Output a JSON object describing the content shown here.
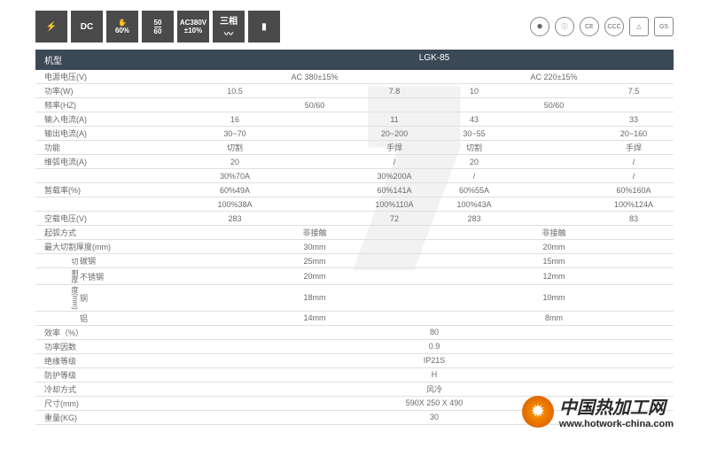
{
  "icons": {
    "i2": "DC",
    "i3": "60%",
    "i4a": "50",
    "i4b": "60",
    "i5a": "AC380V",
    "i5b": "±10%",
    "i6": "三相"
  },
  "certs": [
    "⬢",
    "ⓘ",
    "CE",
    "CCC",
    "△",
    "GS"
  ],
  "header": {
    "lbl": "机型",
    "val": "LGK-85"
  },
  "rows": [
    {
      "lbl": "电源电压(V)",
      "v": [
        "",
        "AC 380±15%",
        "",
        "",
        "AC 220±15%",
        ""
      ]
    },
    {
      "lbl": "功率(W)",
      "v": [
        "10.5",
        "",
        "7.8",
        "10",
        "",
        "7.5"
      ]
    },
    {
      "lbl": "频率(HZ)",
      "v": [
        "",
        "50/60",
        "",
        "",
        "50/60",
        ""
      ]
    },
    {
      "lbl": "输入电流(A)",
      "v": [
        "16",
        "",
        "11",
        "43",
        "",
        "33"
      ]
    },
    {
      "lbl": "输出电流(A)",
      "v": [
        "30~70",
        "",
        "20~200",
        "30~55",
        "",
        "20~160"
      ]
    },
    {
      "lbl": "功能",
      "v": [
        "切割",
        "",
        "手焊",
        "切割",
        "",
        "手焊"
      ]
    },
    {
      "lbl": "维弧电流(A)",
      "v": [
        "20",
        "",
        "/",
        "20",
        "",
        "/"
      ]
    },
    {
      "lbl": "",
      "v": [
        "30%70A",
        "",
        "30%200A",
        "/",
        "",
        "/"
      ]
    },
    {
      "lbl": "暂载率(%)",
      "v": [
        "60%49A",
        "",
        "60%141A",
        "60%55A",
        "",
        "60%160A"
      ]
    },
    {
      "lbl": "",
      "v": [
        "100%38A",
        "",
        "100%110A",
        "100%43A",
        "",
        "100%124A"
      ]
    },
    {
      "lbl": "空载电压(V)",
      "v": [
        "283",
        "",
        "72",
        "283",
        "",
        "83"
      ]
    },
    {
      "lbl": "起弧方式",
      "v": [
        "",
        "非接触",
        "",
        "",
        "非接触",
        ""
      ]
    },
    {
      "lbl": "最大切割厚度(mm)",
      "v": [
        "",
        "30mm",
        "",
        "",
        "20mm",
        ""
      ]
    },
    {
      "lbl": "碳钢",
      "indent": 1,
      "v": [
        "",
        "25mm",
        "",
        "",
        "15mm",
        ""
      ],
      "vl": "切"
    },
    {
      "lbl": "不锈钢",
      "indent": 1,
      "v": [
        "",
        "20mm",
        "",
        "",
        "12mm",
        ""
      ],
      "vl": "割厚"
    },
    {
      "lbl": "铜",
      "indent": 1,
      "v": [
        "",
        "18mm",
        "",
        "",
        "10mm",
        ""
      ],
      "vl": "度(mm)"
    },
    {
      "lbl": "铝",
      "indent": 1,
      "v": [
        "",
        "14mm",
        "",
        "",
        "8mm",
        ""
      ]
    },
    {
      "lbl": "效率（%）",
      "v": [
        "",
        "",
        "",
        "80",
        "",
        ""
      ],
      "span": 1
    },
    {
      "lbl": "功率因数",
      "v": [
        "",
        "",
        "",
        "0.9",
        "",
        ""
      ],
      "span": 1
    },
    {
      "lbl": "绝缘等级",
      "v": [
        "",
        "",
        "",
        "IP21S",
        "",
        ""
      ],
      "span": 1
    },
    {
      "lbl": "防护等级",
      "v": [
        "",
        "",
        "",
        "H",
        "",
        ""
      ],
      "span": 1
    },
    {
      "lbl": "冷却方式",
      "v": [
        "",
        "",
        "",
        "风冷",
        "",
        ""
      ],
      "span": 1
    },
    {
      "lbl": "尺寸(mm)",
      "v": [
        "",
        "",
        "",
        "590X 250 X 490",
        "",
        ""
      ],
      "span": 1
    },
    {
      "lbl": "重量(KG)",
      "v": [
        "",
        "",
        "",
        "30",
        "",
        ""
      ],
      "span": 1
    }
  ],
  "wm": {
    "main": "中国热加工网",
    "url": "www.hotwork-china.com"
  }
}
